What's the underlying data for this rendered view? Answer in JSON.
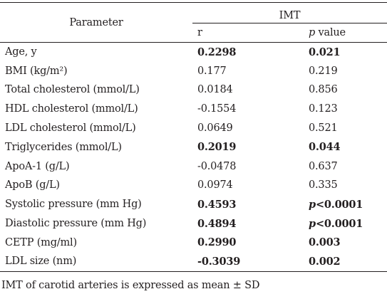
{
  "table": {
    "header": {
      "parameter": "Parameter",
      "group": "IMT",
      "r": "r",
      "p_italic": "p",
      "p_rest": " value"
    },
    "rows": [
      {
        "parameter": "Age, y",
        "r": "0.2298",
        "p_prefix": "",
        "p_value": "0.021",
        "bold": true
      },
      {
        "parameter": "BMI (kg/m²)",
        "r": "0.177",
        "p_prefix": "",
        "p_value": "0.219",
        "bold": false
      },
      {
        "parameter": "Total cholesterol (mmol/L)",
        "r": "0.0184",
        "p_prefix": "",
        "p_value": "0.856",
        "bold": false
      },
      {
        "parameter": "HDL cholesterol (mmol/L)",
        "r": "-0.1554",
        "p_prefix": "",
        "p_value": "0.123",
        "bold": false
      },
      {
        "parameter": "LDL cholesterol (mmol/L)",
        "r": "0.0649",
        "p_prefix": "",
        "p_value": "0.521",
        "bold": false
      },
      {
        "parameter": "Triglycerides (mmol/L)",
        "r": "0.2019",
        "p_prefix": "",
        "p_value": "0.044",
        "bold": true
      },
      {
        "parameter": "ApoA-1 (g/L)",
        "r": "-0.0478",
        "p_prefix": "",
        "p_value": "0.637",
        "bold": false
      },
      {
        "parameter": "ApoB (g/L)",
        "r": "0.0974",
        "p_prefix": "",
        "p_value": "0.335",
        "bold": false
      },
      {
        "parameter": "Systolic pressure (mm Hg)",
        "r": "0.4593",
        "p_prefix": "p",
        "p_value": "<0.0001",
        "bold": true
      },
      {
        "parameter": "Diastolic pressure (mm Hg)",
        "r": "0.4894",
        "p_prefix": "p",
        "p_value": "<0.0001",
        "bold": true
      },
      {
        "parameter": "CETP (mg/ml)",
        "r": "0.2990",
        "p_prefix": "",
        "p_value": "0.003",
        "bold": true
      },
      {
        "parameter": "LDL size (nm)",
        "r": "-0.3039",
        "p_prefix": "",
        "p_value": "0.002",
        "bold": true
      }
    ]
  },
  "footnote": "IMT of carotid arteries is expressed as mean ± SD"
}
